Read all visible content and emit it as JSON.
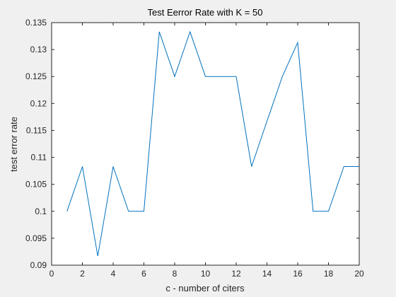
{
  "chart_data": {
    "type": "line",
    "title": "Test Eerror Rate with K = 50",
    "xlabel": "c - number of citers",
    "ylabel": "test error rate",
    "xlim": [
      0,
      20
    ],
    "ylim": [
      0.09,
      0.135
    ],
    "xticks": [
      0,
      2,
      4,
      6,
      8,
      10,
      12,
      14,
      16,
      18,
      20
    ],
    "yticks": [
      0.09,
      0.095,
      0.1,
      0.105,
      0.11,
      0.115,
      0.12,
      0.125,
      0.13,
      0.135
    ],
    "xtick_labels": [
      "0",
      "2",
      "4",
      "6",
      "8",
      "10",
      "12",
      "14",
      "16",
      "18",
      "20"
    ],
    "ytick_labels": [
      "0.09",
      "0.095",
      "0.1",
      "0.105",
      "0.11",
      "0.115",
      "0.12",
      "0.125",
      "0.13",
      "0.135"
    ],
    "grid": false,
    "series": [
      {
        "color": "#0072bd",
        "x": [
          1,
          2,
          3,
          4,
          5,
          6,
          7,
          8,
          9,
          10,
          11,
          12,
          13,
          14,
          15,
          16,
          17,
          18,
          19,
          20
        ],
        "y": [
          0.1,
          0.1083,
          0.0917,
          0.1083,
          0.1,
          0.1,
          0.1333,
          0.125,
          0.1333,
          0.125,
          0.125,
          0.125,
          0.1083,
          0.1167,
          0.125,
          0.1313,
          0.1,
          0.1,
          0.1083,
          0.1083
        ]
      }
    ]
  }
}
